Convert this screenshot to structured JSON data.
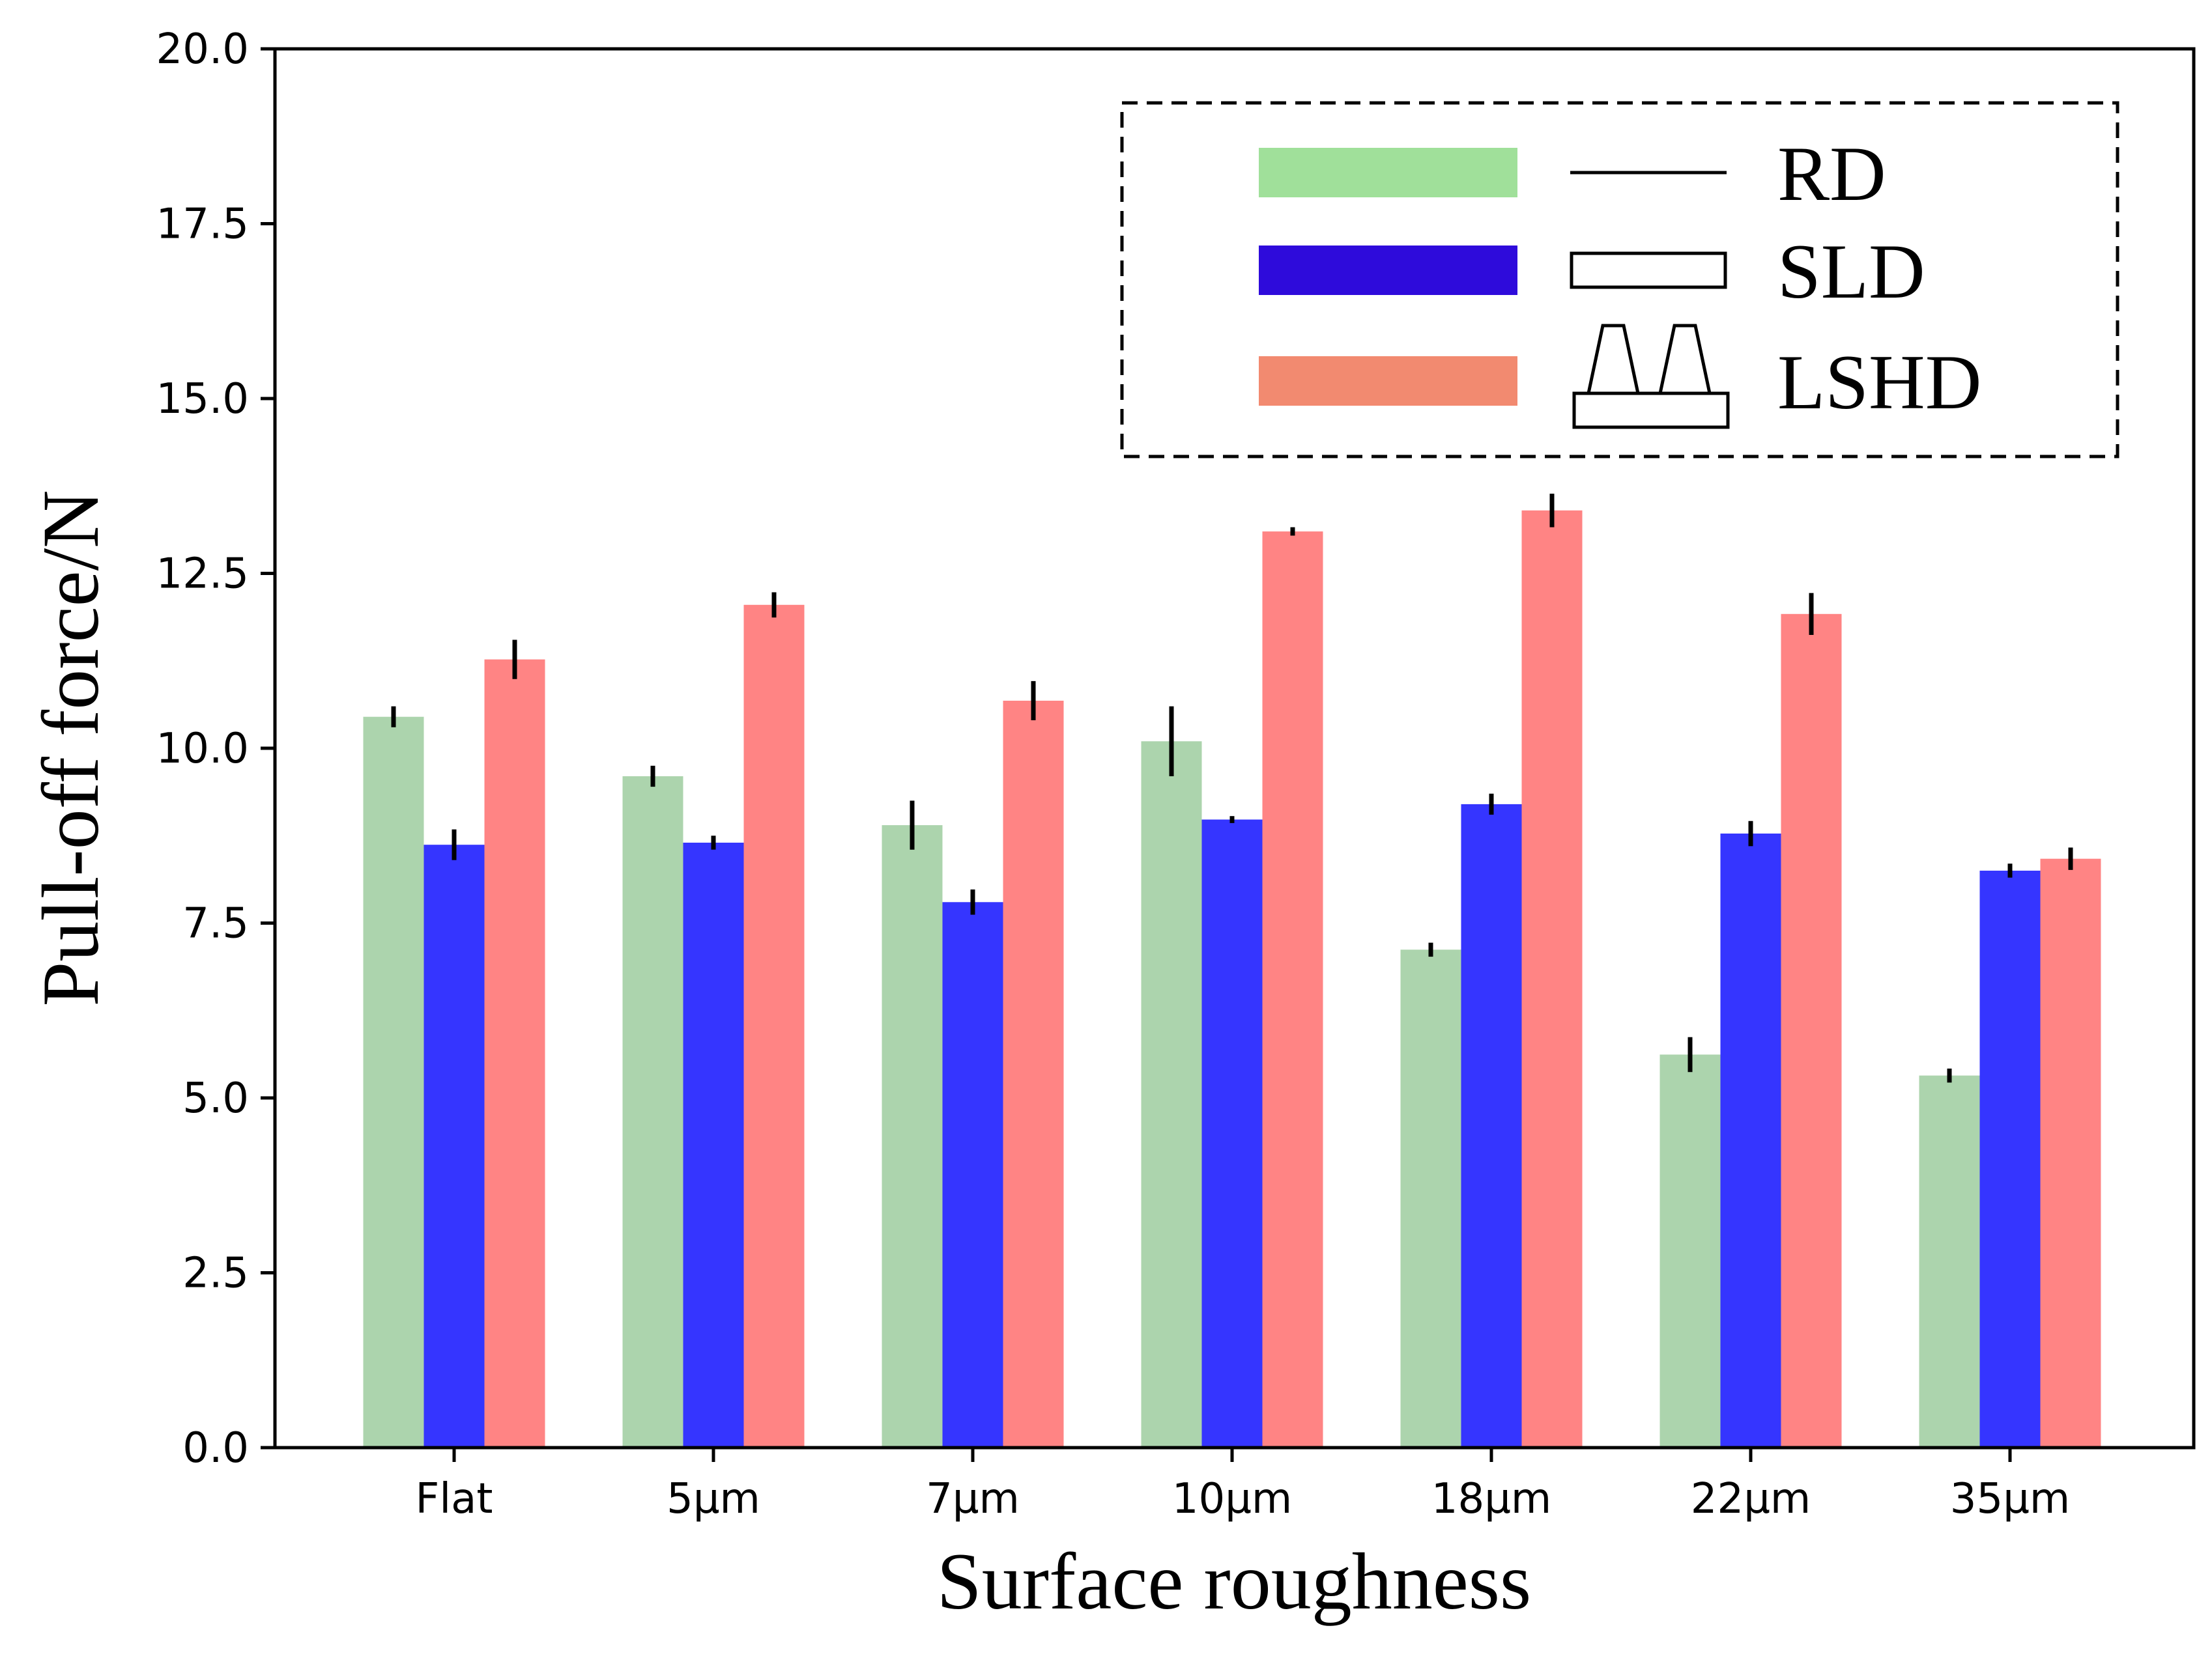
{
  "chart_data": {
    "type": "bar",
    "title": "",
    "xlabel": "Surface roughness",
    "ylabel": "Pull-off force/N",
    "ylim": [
      0,
      20
    ],
    "yticks": [
      "0.0",
      "2.5",
      "5.0",
      "7.5",
      "10.0",
      "12.5",
      "15.0",
      "17.5",
      "20.0"
    ],
    "categories": [
      "Flat",
      "5µm",
      "7µm",
      "10µm",
      "18µm",
      "22µm",
      "35µm"
    ],
    "grid": false,
    "legend_position": "top-right",
    "series": [
      {
        "name": "RD",
        "color": "#acd4ad",
        "legend_color": "#a0e09a",
        "values": [
          10.45,
          9.6,
          8.9,
          10.1,
          7.12,
          5.62,
          5.32
        ],
        "errors": [
          0.15,
          0.15,
          0.35,
          0.5,
          0.1,
          0.25,
          0.1
        ]
      },
      {
        "name": "SLD",
        "color": "#3535ff",
        "legend_color": "#2e0bdb",
        "values": [
          8.62,
          8.65,
          7.8,
          8.98,
          9.2,
          8.78,
          8.25
        ],
        "errors": [
          0.22,
          0.1,
          0.18,
          0.05,
          0.15,
          0.18,
          0.1
        ]
      },
      {
        "name": "LSHD",
        "color": "#ff8484",
        "legend_color": "#f28a70",
        "values": [
          11.27,
          12.05,
          10.68,
          13.1,
          13.4,
          11.92,
          8.42
        ],
        "errors": [
          0.28,
          0.18,
          0.28,
          0.06,
          0.24,
          0.3,
          0.16
        ]
      }
    ]
  }
}
